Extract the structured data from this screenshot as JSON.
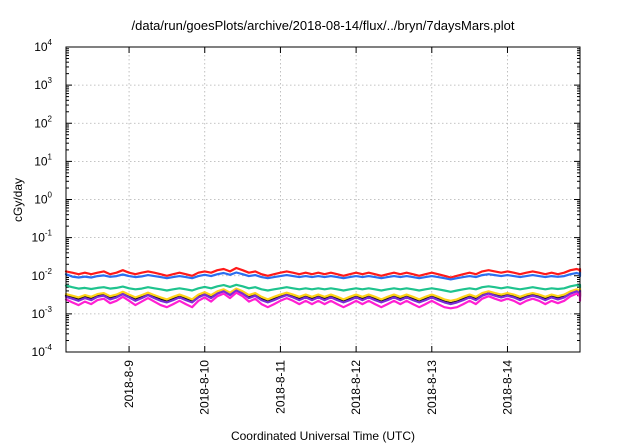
{
  "chart_data": {
    "type": "line",
    "title": "/data/run/goesPlots/archive/2018-08-14/flux/../bryn/7daysMars.plot",
    "xlabel": "Coordinated Universal Time (UTC)",
    "ylabel": "cGy/day",
    "y_scale": "log",
    "ylim": [
      0.0001,
      10000
    ],
    "xlim": [
      "2018-08-08T04:00",
      "2018-08-14T23:00"
    ],
    "x_tick_labels": [
      "2018-8-9",
      "2018-8-10",
      "2018-8-11",
      "2018-8-12",
      "2018-8-13",
      "2018-8-14"
    ],
    "x_tick_dates": [
      "2018-08-09",
      "2018-08-10",
      "2018-08-11",
      "2018-08-12",
      "2018-08-13",
      "2018-08-14"
    ],
    "y_tick_labels": [
      {
        "base": "10",
        "exp": "-4"
      },
      {
        "base": "10",
        "exp": "-3"
      },
      {
        "base": "10",
        "exp": "-2"
      },
      {
        "base": "10",
        "exp": "-1"
      },
      {
        "base": "10",
        "exp": "0"
      },
      {
        "base": "10",
        "exp": "1"
      },
      {
        "base": "10",
        "exp": "2"
      },
      {
        "base": "10",
        "exp": "3"
      },
      {
        "base": "10",
        "exp": "4"
      }
    ],
    "grid": true,
    "x_step_hours": 2,
    "series": [
      {
        "color": "#ff1a1a",
        "values": [
          0.013,
          0.012,
          0.011,
          0.012,
          0.011,
          0.012,
          0.013,
          0.011,
          0.012,
          0.014,
          0.012,
          0.011,
          0.012,
          0.013,
          0.012,
          0.011,
          0.01,
          0.011,
          0.012,
          0.011,
          0.01,
          0.012,
          0.013,
          0.012,
          0.014,
          0.015,
          0.013,
          0.016,
          0.014,
          0.012,
          0.013,
          0.011,
          0.01,
          0.011,
          0.012,
          0.013,
          0.012,
          0.011,
          0.012,
          0.011,
          0.012,
          0.011,
          0.012,
          0.011,
          0.01,
          0.011,
          0.012,
          0.011,
          0.012,
          0.011,
          0.01,
          0.011,
          0.012,
          0.011,
          0.012,
          0.011,
          0.01,
          0.011,
          0.012,
          0.011,
          0.01,
          0.009,
          0.01,
          0.011,
          0.012,
          0.011,
          0.013,
          0.014,
          0.013,
          0.012,
          0.013,
          0.012,
          0.011,
          0.012,
          0.013,
          0.012,
          0.011,
          0.012,
          0.011,
          0.012,
          0.014,
          0.015,
          0.014,
          0.013,
          0.014,
          0.013,
          0.012,
          0.013,
          0.014,
          0.015
        ]
      },
      {
        "color": "#2a6ef0",
        "values": [
          0.011,
          0.0095,
          0.009,
          0.0095,
          0.009,
          0.0098,
          0.0102,
          0.0094,
          0.0098,
          0.0108,
          0.0098,
          0.0092,
          0.0096,
          0.0104,
          0.0098,
          0.0092,
          0.0086,
          0.0092,
          0.0098,
          0.0092,
          0.0086,
          0.0098,
          0.0106,
          0.0098,
          0.011,
          0.0118,
          0.0106,
          0.0122,
          0.011,
          0.0098,
          0.0104,
          0.0092,
          0.0086,
          0.0092,
          0.0098,
          0.0104,
          0.0098,
          0.0092,
          0.0098,
          0.0092,
          0.0098,
          0.0092,
          0.0098,
          0.0092,
          0.0086,
          0.0092,
          0.0098,
          0.0092,
          0.0098,
          0.0092,
          0.0086,
          0.0092,
          0.0098,
          0.0092,
          0.0098,
          0.0092,
          0.0086,
          0.0092,
          0.0098,
          0.0092,
          0.0086,
          0.008,
          0.0086,
          0.0092,
          0.0098,
          0.0092,
          0.0104,
          0.011,
          0.0104,
          0.0098,
          0.0104,
          0.0098,
          0.0092,
          0.0098,
          0.0104,
          0.0098,
          0.0092,
          0.0098,
          0.0094,
          0.0098,
          0.011,
          0.0118,
          0.011,
          0.0104,
          0.011,
          0.0104,
          0.0098,
          0.0104,
          0.011,
          0.012
        ]
      },
      {
        "color": "#1fc38e",
        "values": [
          0.0055,
          0.005,
          0.0046,
          0.0048,
          0.0045,
          0.0048,
          0.005,
          0.0046,
          0.0048,
          0.0052,
          0.0047,
          0.0044,
          0.0046,
          0.005,
          0.0047,
          0.0044,
          0.0041,
          0.0044,
          0.0047,
          0.0044,
          0.0041,
          0.0047,
          0.0051,
          0.0047,
          0.0053,
          0.0057,
          0.0051,
          0.0058,
          0.0053,
          0.0047,
          0.005,
          0.0044,
          0.0041,
          0.0044,
          0.0047,
          0.005,
          0.0047,
          0.0044,
          0.0047,
          0.0044,
          0.0047,
          0.0044,
          0.0047,
          0.0044,
          0.0041,
          0.0044,
          0.0047,
          0.0044,
          0.0047,
          0.0044,
          0.0041,
          0.0044,
          0.0047,
          0.0044,
          0.0047,
          0.0044,
          0.0041,
          0.0044,
          0.0047,
          0.0044,
          0.0041,
          0.0038,
          0.0041,
          0.0044,
          0.0047,
          0.0044,
          0.005,
          0.0053,
          0.005,
          0.0047,
          0.005,
          0.0047,
          0.0044,
          0.0047,
          0.005,
          0.0047,
          0.0044,
          0.0047,
          0.0045,
          0.0047,
          0.0053,
          0.0057,
          0.0053,
          0.005,
          0.0053,
          0.005,
          0.0047,
          0.005,
          0.0053,
          0.0058
        ]
      },
      {
        "color": "#111111",
        "values": [
          0.003,
          0.0027,
          0.0024,
          0.0028,
          0.0025,
          0.003,
          0.0032,
          0.0026,
          0.0029,
          0.0035,
          0.0029,
          0.0024,
          0.0028,
          0.0033,
          0.0028,
          0.0024,
          0.0021,
          0.0025,
          0.0029,
          0.0025,
          0.0021,
          0.0029,
          0.0034,
          0.0028,
          0.0036,
          0.0041,
          0.0033,
          0.0043,
          0.0036,
          0.0028,
          0.0032,
          0.0025,
          0.0021,
          0.0025,
          0.0029,
          0.0033,
          0.0029,
          0.0025,
          0.0029,
          0.0025,
          0.0029,
          0.0025,
          0.0029,
          0.0025,
          0.0021,
          0.0025,
          0.0029,
          0.0025,
          0.0029,
          0.0025,
          0.0021,
          0.0025,
          0.0029,
          0.0025,
          0.0029,
          0.0025,
          0.0021,
          0.0025,
          0.0029,
          0.0025,
          0.0021,
          0.0019,
          0.0021,
          0.0025,
          0.0029,
          0.0025,
          0.0032,
          0.0036,
          0.0032,
          0.0029,
          0.0032,
          0.0029,
          0.0025,
          0.0029,
          0.0032,
          0.0029,
          0.0025,
          0.0029,
          0.0026,
          0.0029,
          0.0036,
          0.0041,
          0.0036,
          0.0032,
          0.0036,
          0.0032,
          0.0029,
          0.0032,
          0.0036,
          0.0043
        ]
      },
      {
        "color": "#ffd21a",
        "values": [
          0.0033,
          0.003,
          0.0027,
          0.0031,
          0.0028,
          0.0033,
          0.0035,
          0.0029,
          0.0032,
          0.0038,
          0.0032,
          0.0027,
          0.0031,
          0.0036,
          0.0031,
          0.0027,
          0.0024,
          0.0028,
          0.0032,
          0.0028,
          0.0024,
          0.0032,
          0.0037,
          0.0031,
          0.0039,
          0.0044,
          0.0036,
          0.0046,
          0.0039,
          0.0031,
          0.0035,
          0.0028,
          0.0024,
          0.0028,
          0.0032,
          0.0036,
          0.0032,
          0.0028,
          0.0032,
          0.0028,
          0.0032,
          0.0028,
          0.0032,
          0.0028,
          0.0024,
          0.0028,
          0.0032,
          0.0028,
          0.0032,
          0.0028,
          0.0024,
          0.0028,
          0.0032,
          0.0028,
          0.0032,
          0.0028,
          0.0024,
          0.0028,
          0.0032,
          0.0028,
          0.0024,
          0.0022,
          0.0024,
          0.0028,
          0.0032,
          0.0028,
          0.0035,
          0.0039,
          0.0035,
          0.0032,
          0.0035,
          0.0032,
          0.0028,
          0.0032,
          0.0035,
          0.0032,
          0.0028,
          0.0032,
          0.0029,
          0.0032,
          0.0039,
          0.0044,
          0.0039,
          0.0035,
          0.0039,
          0.0035,
          0.0032,
          0.0035,
          0.0039,
          0.0046
        ]
      },
      {
        "color": "#7a2cd8",
        "values": [
          0.0028,
          0.0025,
          0.0022,
          0.0026,
          0.0023,
          0.0028,
          0.003,
          0.0024,
          0.0027,
          0.0033,
          0.0027,
          0.0022,
          0.0026,
          0.0031,
          0.0026,
          0.0022,
          0.002,
          0.0023,
          0.0027,
          0.0023,
          0.002,
          0.0027,
          0.0032,
          0.0026,
          0.0034,
          0.0039,
          0.0031,
          0.0041,
          0.0034,
          0.0026,
          0.003,
          0.0023,
          0.002,
          0.0023,
          0.0027,
          0.0031,
          0.0027,
          0.0023,
          0.0027,
          0.0023,
          0.0027,
          0.0023,
          0.0027,
          0.0023,
          0.002,
          0.0023,
          0.0027,
          0.0023,
          0.0027,
          0.0023,
          0.002,
          0.0023,
          0.0027,
          0.0023,
          0.0027,
          0.0023,
          0.002,
          0.0023,
          0.0027,
          0.0023,
          0.002,
          0.0018,
          0.002,
          0.0023,
          0.0027,
          0.0023,
          0.003,
          0.0034,
          0.003,
          0.0027,
          0.003,
          0.0027,
          0.0023,
          0.0027,
          0.003,
          0.0027,
          0.0023,
          0.0027,
          0.0024,
          0.0027,
          0.0034,
          0.0039,
          0.0034,
          0.003,
          0.0034,
          0.003,
          0.0027,
          0.003,
          0.0034,
          0.004
        ]
      },
      {
        "color": "#ff1fd2",
        "values": [
          0.0024,
          0.002,
          0.0017,
          0.0021,
          0.0018,
          0.0023,
          0.0025,
          0.0019,
          0.0022,
          0.0028,
          0.0022,
          0.0017,
          0.0021,
          0.0026,
          0.0021,
          0.0017,
          0.0015,
          0.0018,
          0.0022,
          0.0018,
          0.0015,
          0.0022,
          0.0027,
          0.0021,
          0.0029,
          0.0034,
          0.0026,
          0.0036,
          0.0029,
          0.0021,
          0.0025,
          0.0018,
          0.0015,
          0.0018,
          0.0022,
          0.0026,
          0.0022,
          0.0018,
          0.0022,
          0.0018,
          0.0022,
          0.0018,
          0.0022,
          0.0018,
          0.0015,
          0.0018,
          0.0022,
          0.0018,
          0.0022,
          0.0018,
          0.0015,
          0.0018,
          0.0022,
          0.0018,
          0.0022,
          0.0018,
          0.0015,
          0.0018,
          0.0022,
          0.0018,
          0.0015,
          0.0014,
          0.0015,
          0.0018,
          0.0022,
          0.0018,
          0.0025,
          0.0029,
          0.0025,
          0.0022,
          0.0025,
          0.0022,
          0.0018,
          0.0022,
          0.0025,
          0.0022,
          0.0018,
          0.0022,
          0.0019,
          0.0022,
          0.0029,
          0.0034,
          0.0029,
          0.0025,
          0.0029,
          0.0025,
          0.0022,
          0.0025,
          0.0029,
          0.0035
        ]
      }
    ]
  }
}
